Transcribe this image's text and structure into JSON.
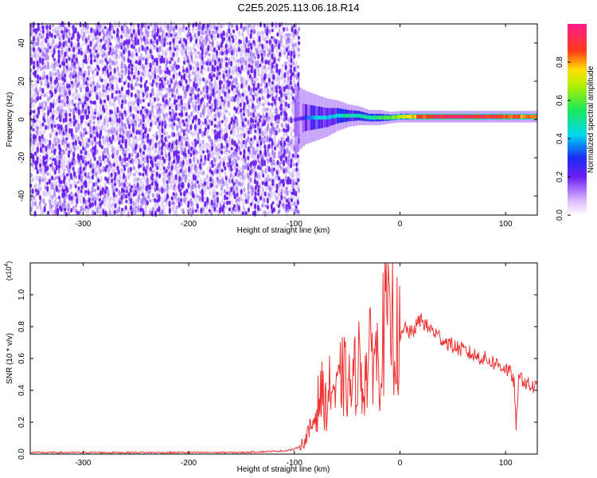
{
  "title": "C2E5.2025.113.06.18.R14",
  "chart_data": [
    {
      "type": "heatmap",
      "xlabel": "Height of straight line (km)",
      "ylabel": "Frequency (Hz)",
      "xlim": [
        -350,
        130
      ],
      "ylim": [
        -50,
        50
      ],
      "xticks": [
        -300,
        -200,
        -100,
        0,
        100
      ],
      "yticks": [
        -40,
        -20,
        0,
        20,
        40
      ],
      "colorbar": {
        "label": "Normalized spectral amplitude",
        "range": [
          0,
          1
        ],
        "ticks": [
          "0.0",
          "0.2",
          "0.4",
          "0.6",
          "0.8"
        ],
        "colormap": "white-violet-blue-cyan-green-yellow-red-magenta"
      },
      "noise_region": {
        "x_range": [
          -350,
          -100
        ],
        "amplitude": 0.12,
        "color": "#6a1ff0"
      },
      "signal_band": [
        {
          "x": -100,
          "f": 0,
          "width_hz": 18,
          "amplitude": 0.18
        },
        {
          "x": -90,
          "f": 1,
          "width_hz": 14,
          "amplitude": 0.3
        },
        {
          "x": -80,
          "f": 1,
          "width_hz": 12,
          "amplitude": 0.4
        },
        {
          "x": -70,
          "f": 1,
          "width_hz": 10,
          "amplitude": 0.42
        },
        {
          "x": -60,
          "f": 2,
          "width_hz": 8,
          "amplitude": 0.45
        },
        {
          "x": -50,
          "f": 2,
          "width_hz": 6,
          "amplitude": 0.48
        },
        {
          "x": -40,
          "f": 2,
          "width_hz": 5,
          "amplitude": 0.45
        },
        {
          "x": -30,
          "f": 1,
          "width_hz": 4,
          "amplitude": 0.5
        },
        {
          "x": -20,
          "f": 1,
          "width_hz": 4,
          "amplitude": 0.55
        },
        {
          "x": -10,
          "f": 1,
          "width_hz": 3,
          "amplitude": 0.6
        },
        {
          "x": 0,
          "f": 1.5,
          "width_hz": 3,
          "amplitude": 0.7
        },
        {
          "x": 20,
          "f": 1.5,
          "width_hz": 3,
          "amplitude": 0.85
        },
        {
          "x": 40,
          "f": 1.5,
          "width_hz": 3,
          "amplitude": 0.95
        },
        {
          "x": 60,
          "f": 1.5,
          "width_hz": 3,
          "amplitude": 0.95
        },
        {
          "x": 80,
          "f": 1.5,
          "width_hz": 3,
          "amplitude": 0.9
        },
        {
          "x": 100,
          "f": 1.5,
          "width_hz": 3,
          "amplitude": 0.85
        },
        {
          "x": 130,
          "f": 1.5,
          "width_hz": 3,
          "amplitude": 0.8
        }
      ],
      "grid": false
    },
    {
      "type": "line",
      "xlabel": "Height of straight line (km)",
      "ylabel": "SNR (10 * v/v)",
      "multiplier": "(x10",
      "multiplier_exp": "4",
      "multiplier_close": ")",
      "xlim": [
        -350,
        130
      ],
      "ylim": [
        0,
        1.2
      ],
      "xticks": [
        -300,
        -200,
        -100,
        0,
        100
      ],
      "yticks": [
        "0.0",
        "0.2",
        "0.4",
        "0.6",
        "0.8",
        "1.0"
      ],
      "color": "#ee3333",
      "grid": false,
      "series": [
        {
          "x": [
            -350,
            -300,
            -250,
            -200,
            -150,
            -110,
            -100,
            -95,
            -90,
            -85,
            -80,
            -75,
            -70,
            -65,
            -60,
            -55,
            -50,
            -45,
            -40,
            -35,
            -30,
            -25,
            -20,
            -15,
            -12,
            -10,
            -8,
            -5,
            0,
            5,
            10,
            15,
            20,
            25,
            30,
            35,
            40,
            50,
            60,
            70,
            80,
            90,
            100,
            105,
            108,
            110,
            112,
            115,
            120,
            125,
            130
          ],
          "y": [
            0.01,
            0.01,
            0.01,
            0.01,
            0.01,
            0.02,
            0.03,
            0.05,
            0.08,
            0.15,
            0.25,
            0.4,
            0.3,
            0.45,
            0.35,
            0.5,
            0.45,
            0.4,
            0.6,
            0.45,
            0.55,
            0.7,
            0.55,
            0.8,
            0.95,
            0.7,
            0.9,
            0.75,
            0.7,
            0.8,
            0.75,
            0.8,
            0.85,
            0.8,
            0.78,
            0.75,
            0.72,
            0.68,
            0.65,
            0.62,
            0.6,
            0.57,
            0.54,
            0.5,
            0.46,
            0.15,
            0.45,
            0.48,
            0.44,
            0.42,
            0.42
          ]
        }
      ]
    }
  ]
}
